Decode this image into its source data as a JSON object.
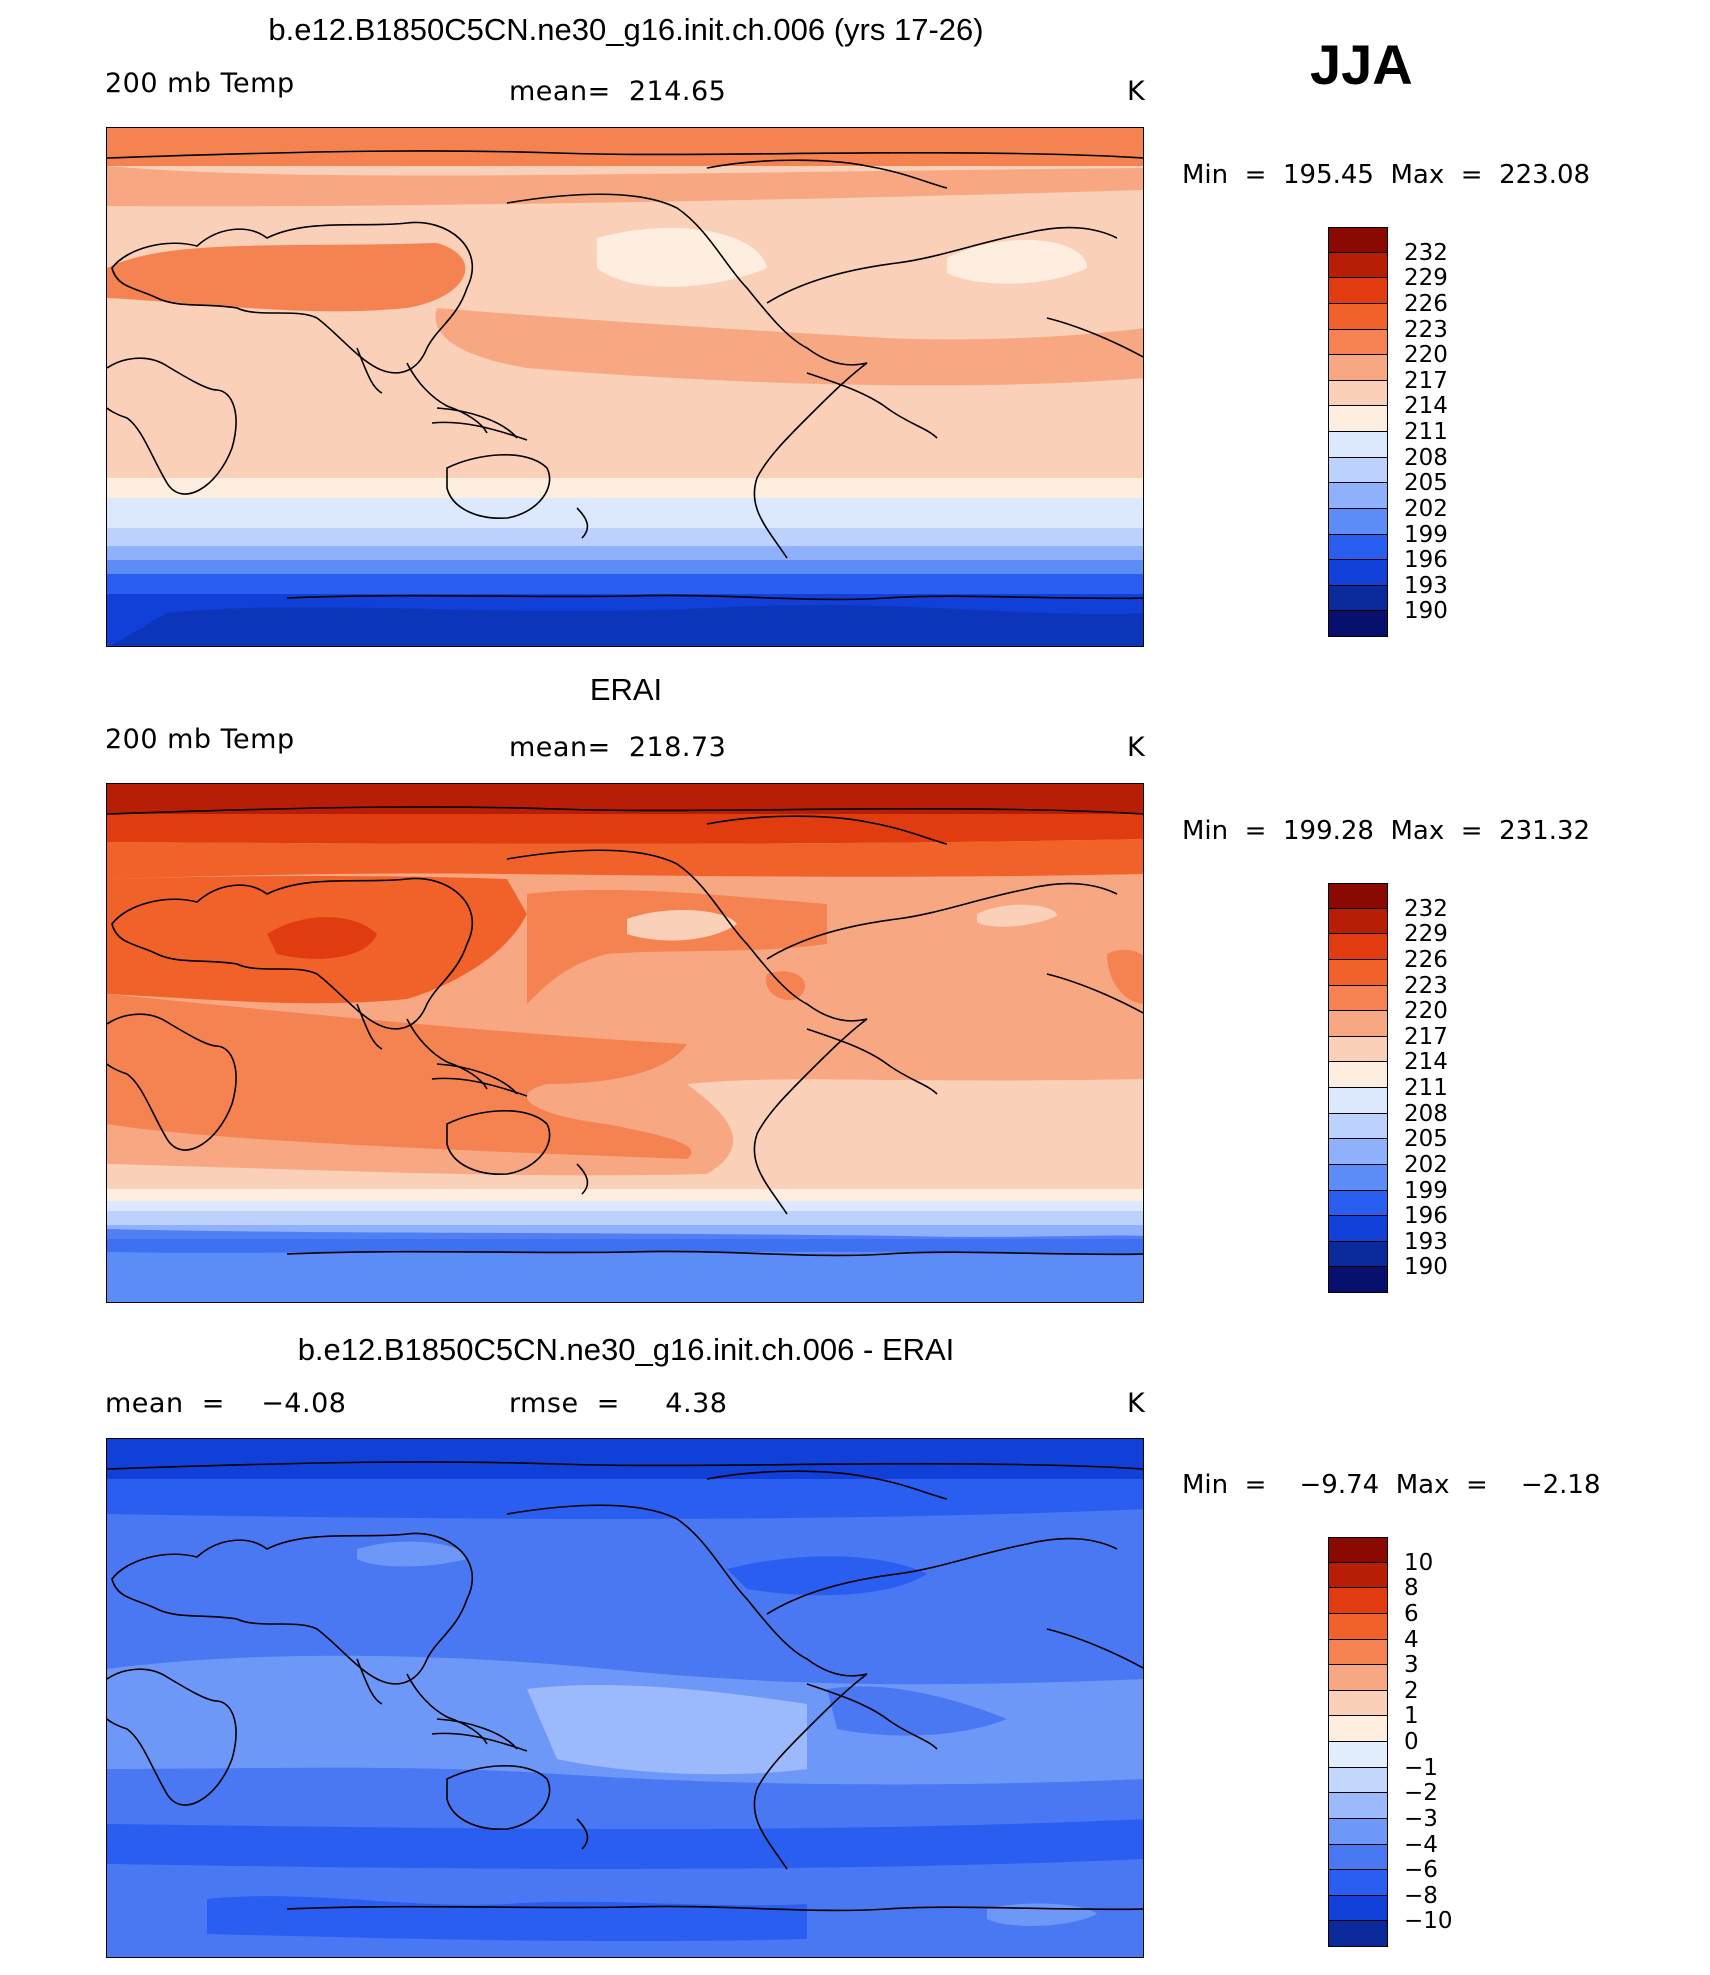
{
  "season": "JJA",
  "colors": {
    "abs_scale": [
      "#08106e",
      "#0a2a9c",
      "#1040d8",
      "#2a5ef0",
      "#5c8cf5",
      "#8fb0fa",
      "#bcd2fc",
      "#dbe8fd",
      "#fdeee0",
      "#fbd0b8",
      "#f7a882",
      "#f58352",
      "#f0622a",
      "#e03c0f",
      "#b81e05",
      "#8a0a02"
    ],
    "diff_scale": [
      "#08106e",
      "#0a2a9c",
      "#1040d8",
      "#2a5ef0",
      "#4a78f2",
      "#6e98f7",
      "#9cbafb",
      "#c4d8fd",
      "#e3eefd",
      "#fdeee0",
      "#fbd0b8",
      "#f7a882",
      "#f58352",
      "#f0622a",
      "#e03c0f",
      "#b81e05",
      "#8a0a02"
    ]
  },
  "panels": [
    {
      "title": "b.e12.B1850C5CN.ne30_g16.init.ch.006 (yrs 17-26)",
      "left_label": "200 mb Temp",
      "center_label": "mean=  214.65",
      "units": "K",
      "minmax": "Min  =  195.45  Max  =  223.08",
      "colorbar_labels": [
        "232",
        "229",
        "226",
        "223",
        "220",
        "217",
        "214",
        "211",
        "208",
        "205",
        "202",
        "199",
        "196",
        "193",
        "190"
      ]
    },
    {
      "title": "ERAI",
      "left_label": "200 mb Temp",
      "center_label": "mean=  218.73",
      "units": "K",
      "minmax": "Min  =  199.28  Max  =  231.32",
      "colorbar_labels": [
        "232",
        "229",
        "226",
        "223",
        "220",
        "217",
        "214",
        "211",
        "208",
        "205",
        "202",
        "199",
        "196",
        "193",
        "190"
      ]
    },
    {
      "title": "b.e12.B1850C5CN.ne30_g16.init.ch.006 - ERAI",
      "left_label": "mean  =    −4.08",
      "center_label": "rmse  =     4.38",
      "units": "K",
      "minmax": "Min  =    −9.74  Max  =    −2.18",
      "colorbar_labels": [
        "10",
        "8",
        "6",
        "4",
        "3",
        "2",
        "1",
        "0",
        "−1",
        "−2",
        "−3",
        "−4",
        "−6",
        "−8",
        "−10"
      ]
    }
  ]
}
